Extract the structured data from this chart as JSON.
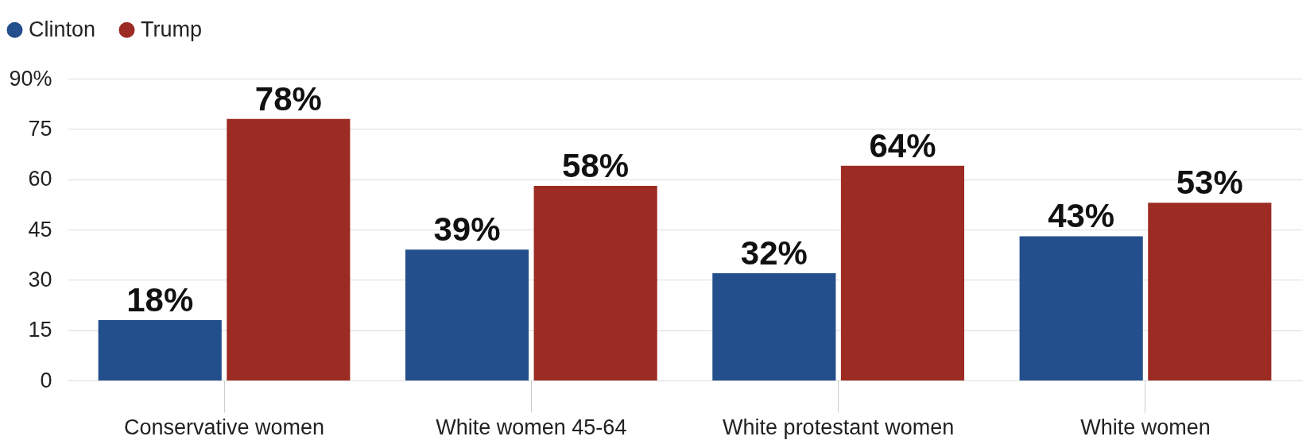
{
  "chart_data": {
    "type": "bar",
    "categories": [
      "Conservative women",
      "White women 45-64",
      "White protestant women",
      "White women"
    ],
    "series": [
      {
        "name": "Clinton",
        "color": "#234f8c",
        "values": [
          18,
          39,
          32,
          43
        ],
        "value_labels": [
          "18%",
          "39%",
          "32%",
          "43%"
        ]
      },
      {
        "name": "Trump",
        "color": "#9c2b23",
        "values": [
          78,
          58,
          64,
          53
        ],
        "value_labels": [
          "78%",
          "58%",
          "64%",
          "53%"
        ]
      }
    ],
    "ylim": [
      0,
      90
    ],
    "yticks": [
      0,
      15,
      30,
      45,
      60,
      75,
      {
        "value": 90,
        "label": "90%"
      }
    ],
    "grid": "y",
    "legend": "top left"
  }
}
